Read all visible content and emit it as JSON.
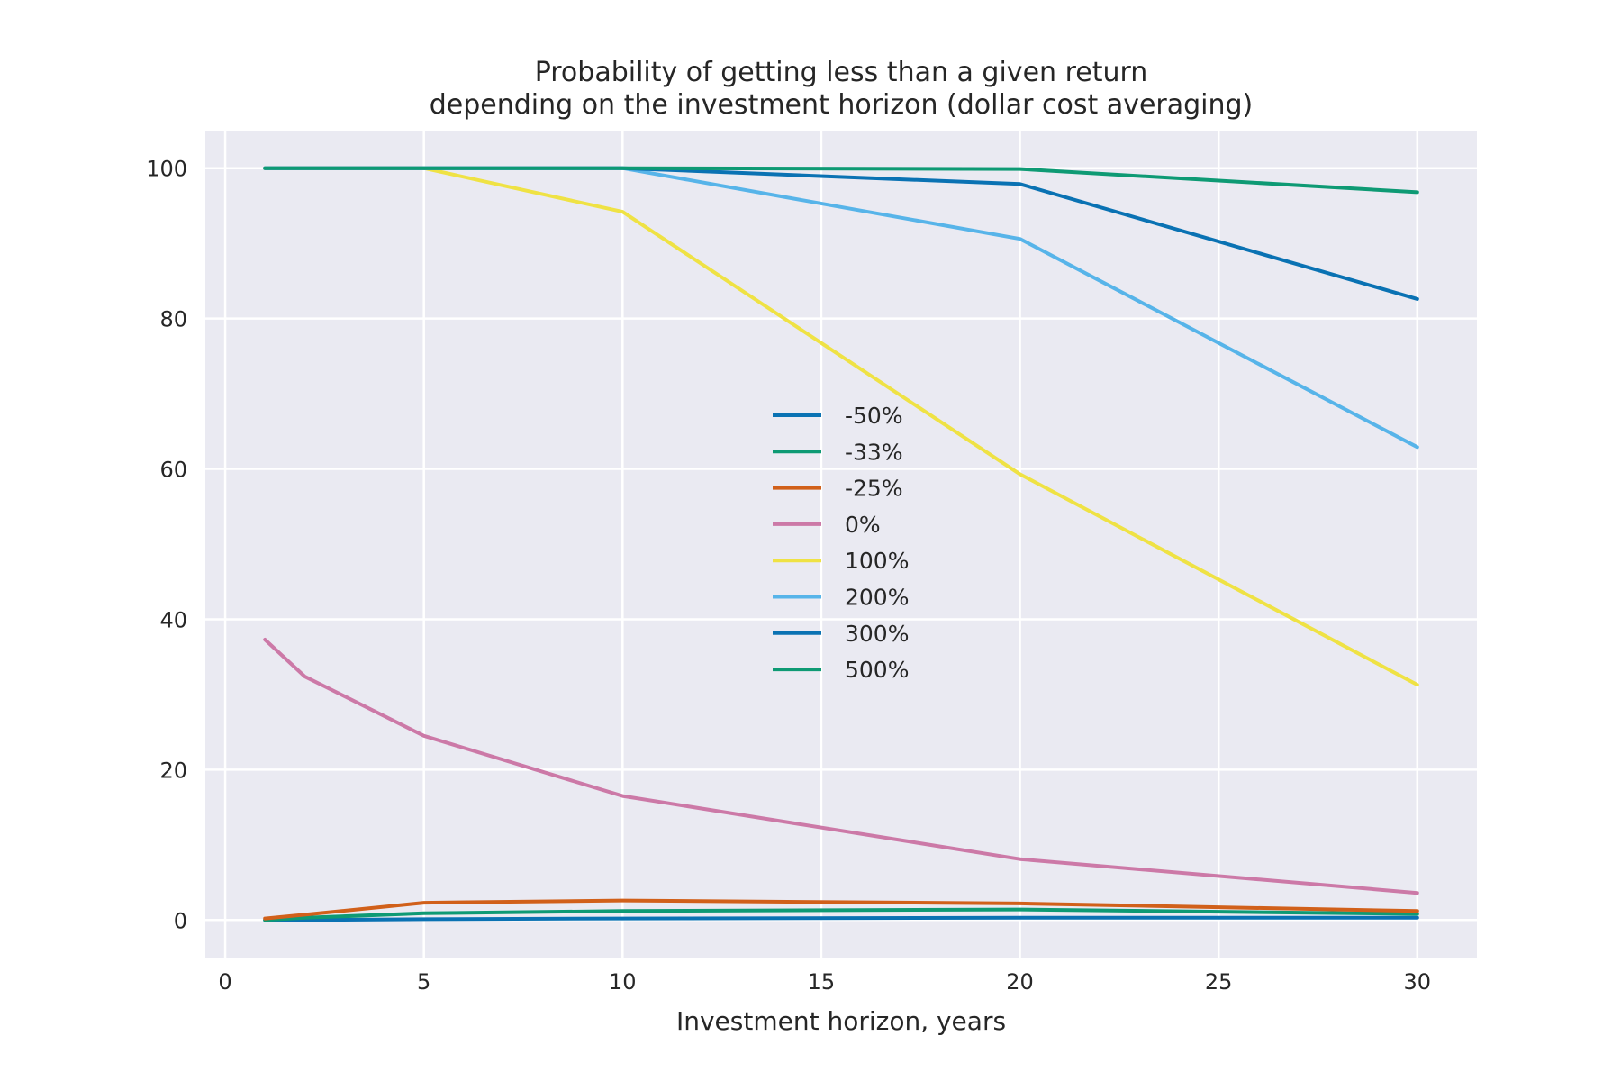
{
  "chart_data": {
    "type": "line",
    "title": "Probability of getting less than a given return\ndepending on the investment horizon (dollar cost averaging)",
    "xlabel": "Investment horizon, years",
    "ylabel": "",
    "xlim": [
      -0.5,
      31.5
    ],
    "ylim": [
      -5,
      105
    ],
    "xticks": [
      0,
      5,
      10,
      15,
      20,
      25,
      30
    ],
    "yticks": [
      0,
      20,
      40,
      60,
      80,
      100
    ],
    "grid": true,
    "legend_position": "center",
    "series": [
      {
        "name": "-50%",
        "color": "#0a72b3",
        "x": [
          1,
          2,
          5,
          10,
          20,
          30
        ],
        "y": [
          0,
          0,
          0.1,
          0.2,
          0.3,
          0.3
        ]
      },
      {
        "name": "-33%",
        "color": "#0e9a74",
        "x": [
          1,
          2,
          5,
          10,
          20,
          30
        ],
        "y": [
          0,
          0.3,
          0.9,
          1.2,
          1.4,
          0.8
        ]
      },
      {
        "name": "-25%",
        "color": "#d1601a",
        "x": [
          1,
          2,
          5,
          10,
          20,
          30
        ],
        "y": [
          0.2,
          0.7,
          2.3,
          2.6,
          2.2,
          1.2
        ]
      },
      {
        "name": "0%",
        "color": "#cc79a7",
        "x": [
          1,
          2,
          5,
          10,
          20,
          30
        ],
        "y": [
          37.3,
          32.4,
          24.5,
          16.5,
          8.1,
          3.6
        ]
      },
      {
        "name": "100%",
        "color": "#efe244",
        "x": [
          1,
          2,
          5,
          10,
          20,
          30
        ],
        "y": [
          100,
          100,
          100,
          94.2,
          59.3,
          31.3
        ]
      },
      {
        "name": "200%",
        "color": "#57b4e9",
        "x": [
          1,
          2,
          5,
          10,
          20,
          30
        ],
        "y": [
          100,
          100,
          100,
          100,
          90.6,
          62.9
        ]
      },
      {
        "name": "300%",
        "color": "#0a72b3",
        "x": [
          1,
          2,
          5,
          10,
          20,
          30
        ],
        "y": [
          100,
          100,
          100,
          100,
          97.9,
          82.6
        ]
      },
      {
        "name": "500%",
        "color": "#0e9a74",
        "x": [
          1,
          2,
          5,
          10,
          20,
          30
        ],
        "y": [
          100,
          100,
          100,
          100,
          99.9,
          96.8
        ]
      }
    ]
  }
}
